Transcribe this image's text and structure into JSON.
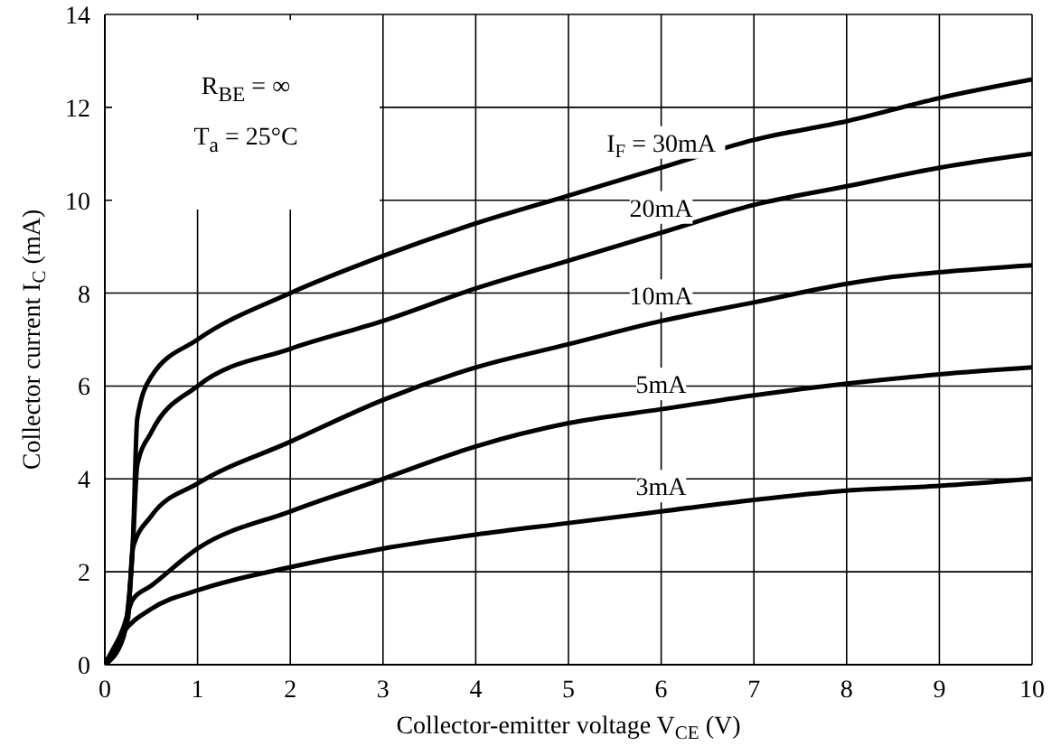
{
  "chart_data": {
    "type": "line",
    "xlabel": "Collector-emitter voltage V$_{CE}$ (V)",
    "ylabel": "Collector current I$_{C}$ (mA)",
    "xlim": [
      0,
      10
    ],
    "ylim": [
      0,
      14
    ],
    "xticks": [
      0,
      1,
      2,
      3,
      4,
      5,
      6,
      7,
      8,
      9,
      10
    ],
    "yticks": [
      0,
      2,
      4,
      6,
      8,
      10,
      12,
      14
    ],
    "grid": true,
    "legend": false,
    "annotations": [
      "R$_{BE}$ = ∞",
      "T$_{a}$ = 25°C"
    ],
    "series": [
      {
        "name": "I$_{F}$ = 30mA",
        "color": "#000000",
        "x": [
          0,
          0.2,
          0.3,
          0.35,
          0.5,
          1,
          2,
          3,
          4,
          5,
          6,
          7,
          8,
          9,
          10
        ],
        "values": [
          0,
          0.6,
          2.5,
          5.3,
          6.2,
          7.0,
          8.0,
          8.8,
          9.5,
          10.1,
          10.7,
          11.3,
          11.7,
          12.2,
          12.6
        ]
      },
      {
        "name": "20mA",
        "color": "#000000",
        "x": [
          0,
          0.2,
          0.3,
          0.35,
          0.5,
          1,
          2,
          3,
          4,
          5,
          6,
          7,
          8,
          9,
          10
        ],
        "values": [
          0,
          0.6,
          2.5,
          4.3,
          5.0,
          6.0,
          6.8,
          7.4,
          8.1,
          8.7,
          9.3,
          9.9,
          10.3,
          10.7,
          11.0
        ]
      },
      {
        "name": "10mA",
        "color": "#000000",
        "x": [
          0,
          0.25,
          0.3,
          0.5,
          1,
          2,
          3,
          4,
          5,
          6,
          7,
          8,
          8.5,
          9,
          10
        ],
        "values": [
          0,
          1.0,
          2.5,
          3.2,
          3.9,
          4.8,
          5.7,
          6.4,
          6.9,
          7.4,
          7.8,
          8.2,
          8.35,
          8.45,
          8.6
        ]
      },
      {
        "name": "5mA",
        "color": "#000000",
        "x": [
          0,
          0.2,
          0.3,
          0.5,
          1,
          2,
          3,
          4,
          5,
          6,
          7,
          8,
          9,
          10
        ],
        "values": [
          0,
          0.8,
          1.4,
          1.7,
          2.5,
          3.3,
          4.0,
          4.7,
          5.2,
          5.5,
          5.8,
          6.05,
          6.25,
          6.4
        ]
      },
      {
        "name": "3mA",
        "color": "#000000",
        "x": [
          0,
          0.2,
          0.5,
          1,
          2,
          3,
          4,
          5,
          6,
          7,
          8,
          9,
          10
        ],
        "values": [
          0,
          0.7,
          1.2,
          1.6,
          2.1,
          2.5,
          2.8,
          3.05,
          3.3,
          3.55,
          3.75,
          3.85,
          4.0
        ]
      }
    ]
  }
}
